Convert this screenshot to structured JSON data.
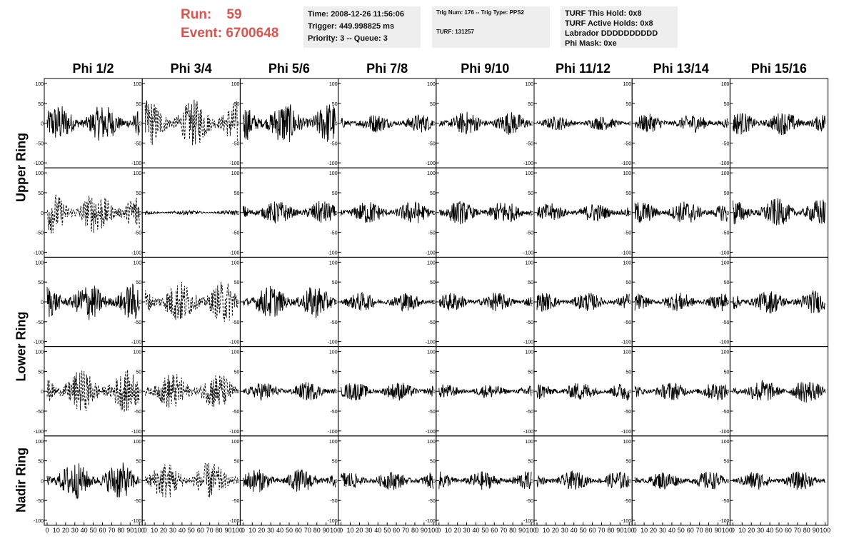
{
  "header": {
    "run_label": "Run:",
    "run_value": "59",
    "event_label": "Event:",
    "event_value": "6700648",
    "time_box": {
      "time": "Time: 2008-12-26 11:56:06",
      "trigger": "Trigger: 449.998825 ms",
      "priority": "Priority: 3 -- Queue: 3"
    },
    "trig_box": {
      "trig": "Trig Num: 176 -- Trig Type: PPS2",
      "turf": "TURF: 131257"
    },
    "turf_box": {
      "this_hold": "TURF This Hold: 0x8",
      "active_holds": "TURF Active Holds: 0x8",
      "labrador": "Labrador DDDDDDDDDD",
      "phi_mask": "Phi Mask: 0xe"
    },
    "text_color": "#d9534f",
    "box_color": "#eeeeee"
  },
  "chart_data": {
    "type": "line",
    "columns": [
      "Phi 1/2",
      "Phi 3/4",
      "Phi 5/6",
      "Phi 7/8",
      "Phi 9/10",
      "Phi 11/12",
      "Phi 13/14",
      "Phi 15/16"
    ],
    "ring_labels": [
      "Upper Ring",
      "Lower Ring",
      "Nadir Ring"
    ],
    "rows_per_ring": [
      2,
      2,
      1
    ],
    "x_range": [
      0,
      100
    ],
    "x_ticks": [
      0,
      10,
      20,
      30,
      40,
      50,
      60,
      70,
      80,
      90,
      100
    ],
    "y_range": [
      -100,
      100
    ],
    "y_ticks": [
      100,
      50,
      0,
      -50,
      -100
    ],
    "y_tick_labels": [
      "100",
      "50",
      "0",
      "-50",
      "-100"
    ],
    "x_tick_labels": [
      "0",
      "10",
      "20",
      "30",
      "40",
      "50",
      "60",
      "70",
      "80",
      "90",
      "100"
    ],
    "amplitude_grid": [
      [
        40,
        50,
        45,
        20,
        25,
        15,
        20,
        25
      ],
      [
        45,
        5,
        25,
        25,
        25,
        20,
        25,
        30
      ],
      [
        40,
        45,
        35,
        20,
        20,
        20,
        20,
        25
      ],
      [
        45,
        40,
        20,
        20,
        15,
        20,
        20,
        25
      ],
      [
        40,
        40,
        25,
        20,
        20,
        20,
        20,
        20
      ]
    ],
    "dashed_panels": [
      [
        0,
        1
      ],
      [
        1,
        0
      ],
      [
        2,
        1
      ],
      [
        3,
        0
      ],
      [
        3,
        1
      ],
      [
        4,
        1
      ]
    ],
    "line_color": "#000000",
    "grid": false
  }
}
